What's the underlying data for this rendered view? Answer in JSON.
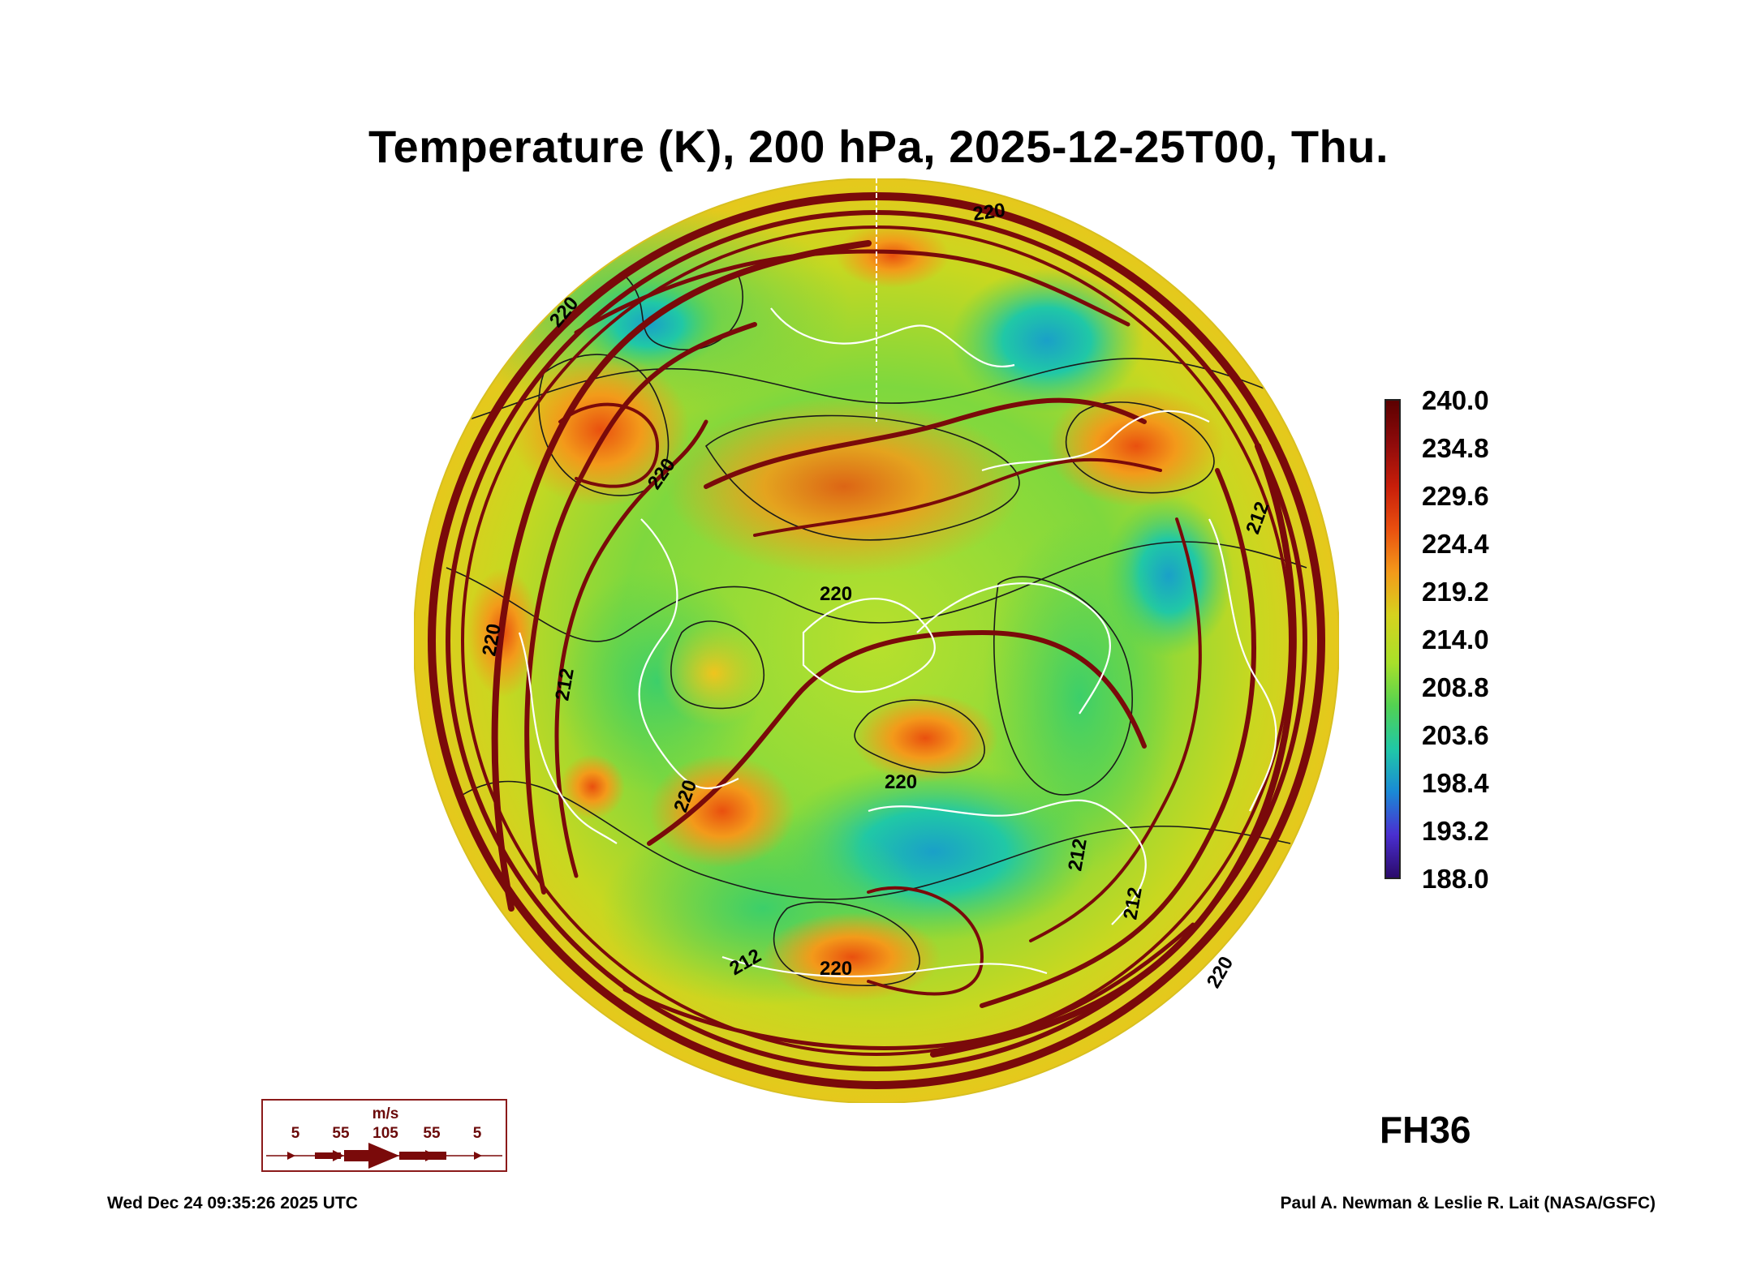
{
  "title": "Temperature (K), 200 hPa, 2025-12-25T00, Thu.",
  "colorbar": {
    "labels": [
      "240.0",
      "234.8",
      "229.6",
      "224.4",
      "219.2",
      "214.0",
      "208.8",
      "203.6",
      "198.4",
      "193.2",
      "188.0"
    ],
    "colors_top_to_bottom": [
      "#5c0000",
      "#8e0b0b",
      "#c81e0a",
      "#e9500f",
      "#f39a1a",
      "#d6d21e",
      "#a8e02a",
      "#52d252",
      "#20c8a6",
      "#1a8ad6",
      "#4a2fd0",
      "#2b0a6a"
    ]
  },
  "contour_labels": [
    "220",
    "220",
    "212",
    "220",
    "220",
    "220",
    "212",
    "220",
    "212",
    "212",
    "220",
    "212",
    "220",
    "220"
  ],
  "wind_legend": {
    "unit": "m/s",
    "speeds": [
      "5",
      "55",
      "105",
      "55",
      "5"
    ]
  },
  "forecast_hour": "FH36",
  "footer_left": "Wed Dec 24 09:35:26 2025 UTC",
  "footer_right": "Paul A. Newman & Leslie R. Lait (NASA/GSFC)",
  "colors": {
    "streamline": "#7a0a0a",
    "coastline": "#ffffff",
    "isotherm": "#1a1a1a"
  }
}
